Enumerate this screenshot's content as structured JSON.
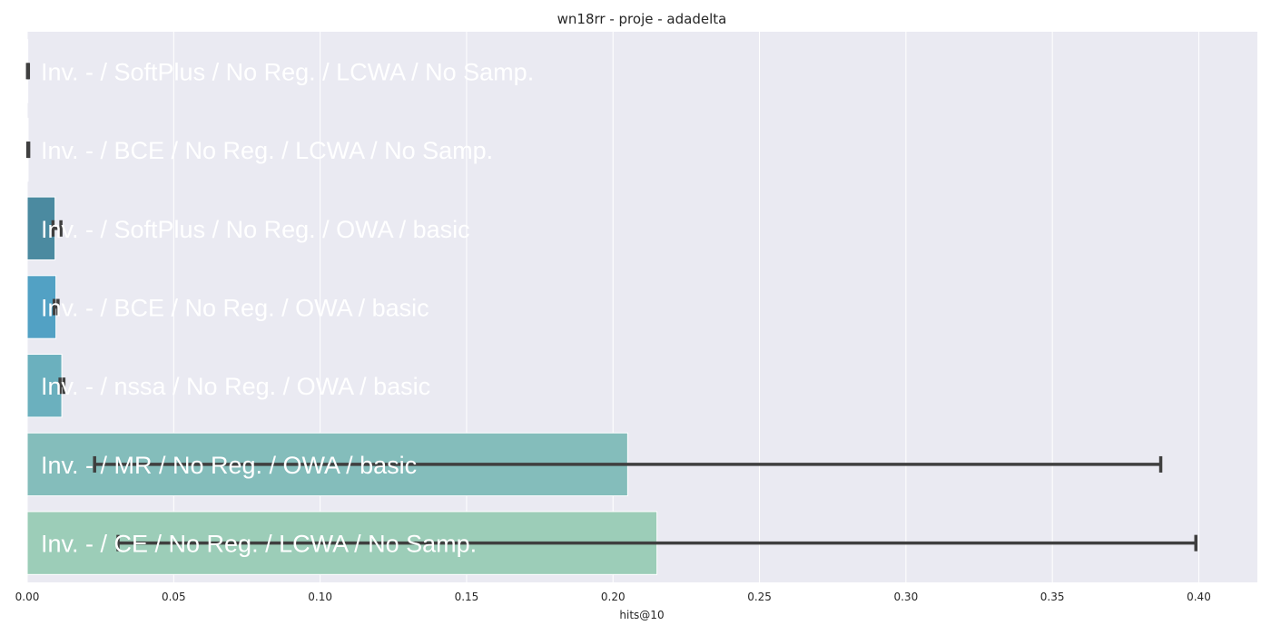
{
  "chart_data": {
    "type": "bar",
    "orientation": "horizontal",
    "title": "wn18rr - proje - adadelta",
    "xlabel": "hits@10",
    "ylabel": "",
    "xlim": [
      0,
      0.42
    ],
    "xticks": [
      0.0,
      0.05,
      0.1,
      0.15,
      0.2,
      0.25,
      0.3,
      0.35,
      0.4
    ],
    "xtick_labels": [
      "0.00",
      "0.05",
      "0.10",
      "0.15",
      "0.20",
      "0.25",
      "0.30",
      "0.35",
      "0.40"
    ],
    "grid": true,
    "categories": [
      "Inv. - / SoftPlus / No Reg. / LCWA / No Samp.",
      "Inv. - / BCE / No Reg. / LCWA / No Samp.",
      "Inv. - / SoftPlus / No Reg. / OWA / basic",
      "Inv. - / BCE / No Reg. / OWA / basic",
      "Inv. - / nssa / No Reg. / OWA / basic",
      "Inv. - / MR / No Reg. / OWA / basic",
      "Inv. - / CE / No Reg. / LCWA / No Samp."
    ],
    "values": [
      0.0002,
      0.0003,
      0.0095,
      0.0098,
      0.0118,
      0.205,
      0.215
    ],
    "error_low": [
      0.0001,
      0.0002,
      0.0088,
      0.0092,
      0.0112,
      0.023,
      0.031
    ],
    "error_high": [
      0.0004,
      0.0005,
      0.0115,
      0.0105,
      0.0125,
      0.387,
      0.399
    ],
    "colors": [
      "#2a5d7e",
      "#3d7c99",
      "#4b8aa0",
      "#52a1c4",
      "#6bb0be",
      "#84bdbb",
      "#9ccdb8"
    ]
  }
}
